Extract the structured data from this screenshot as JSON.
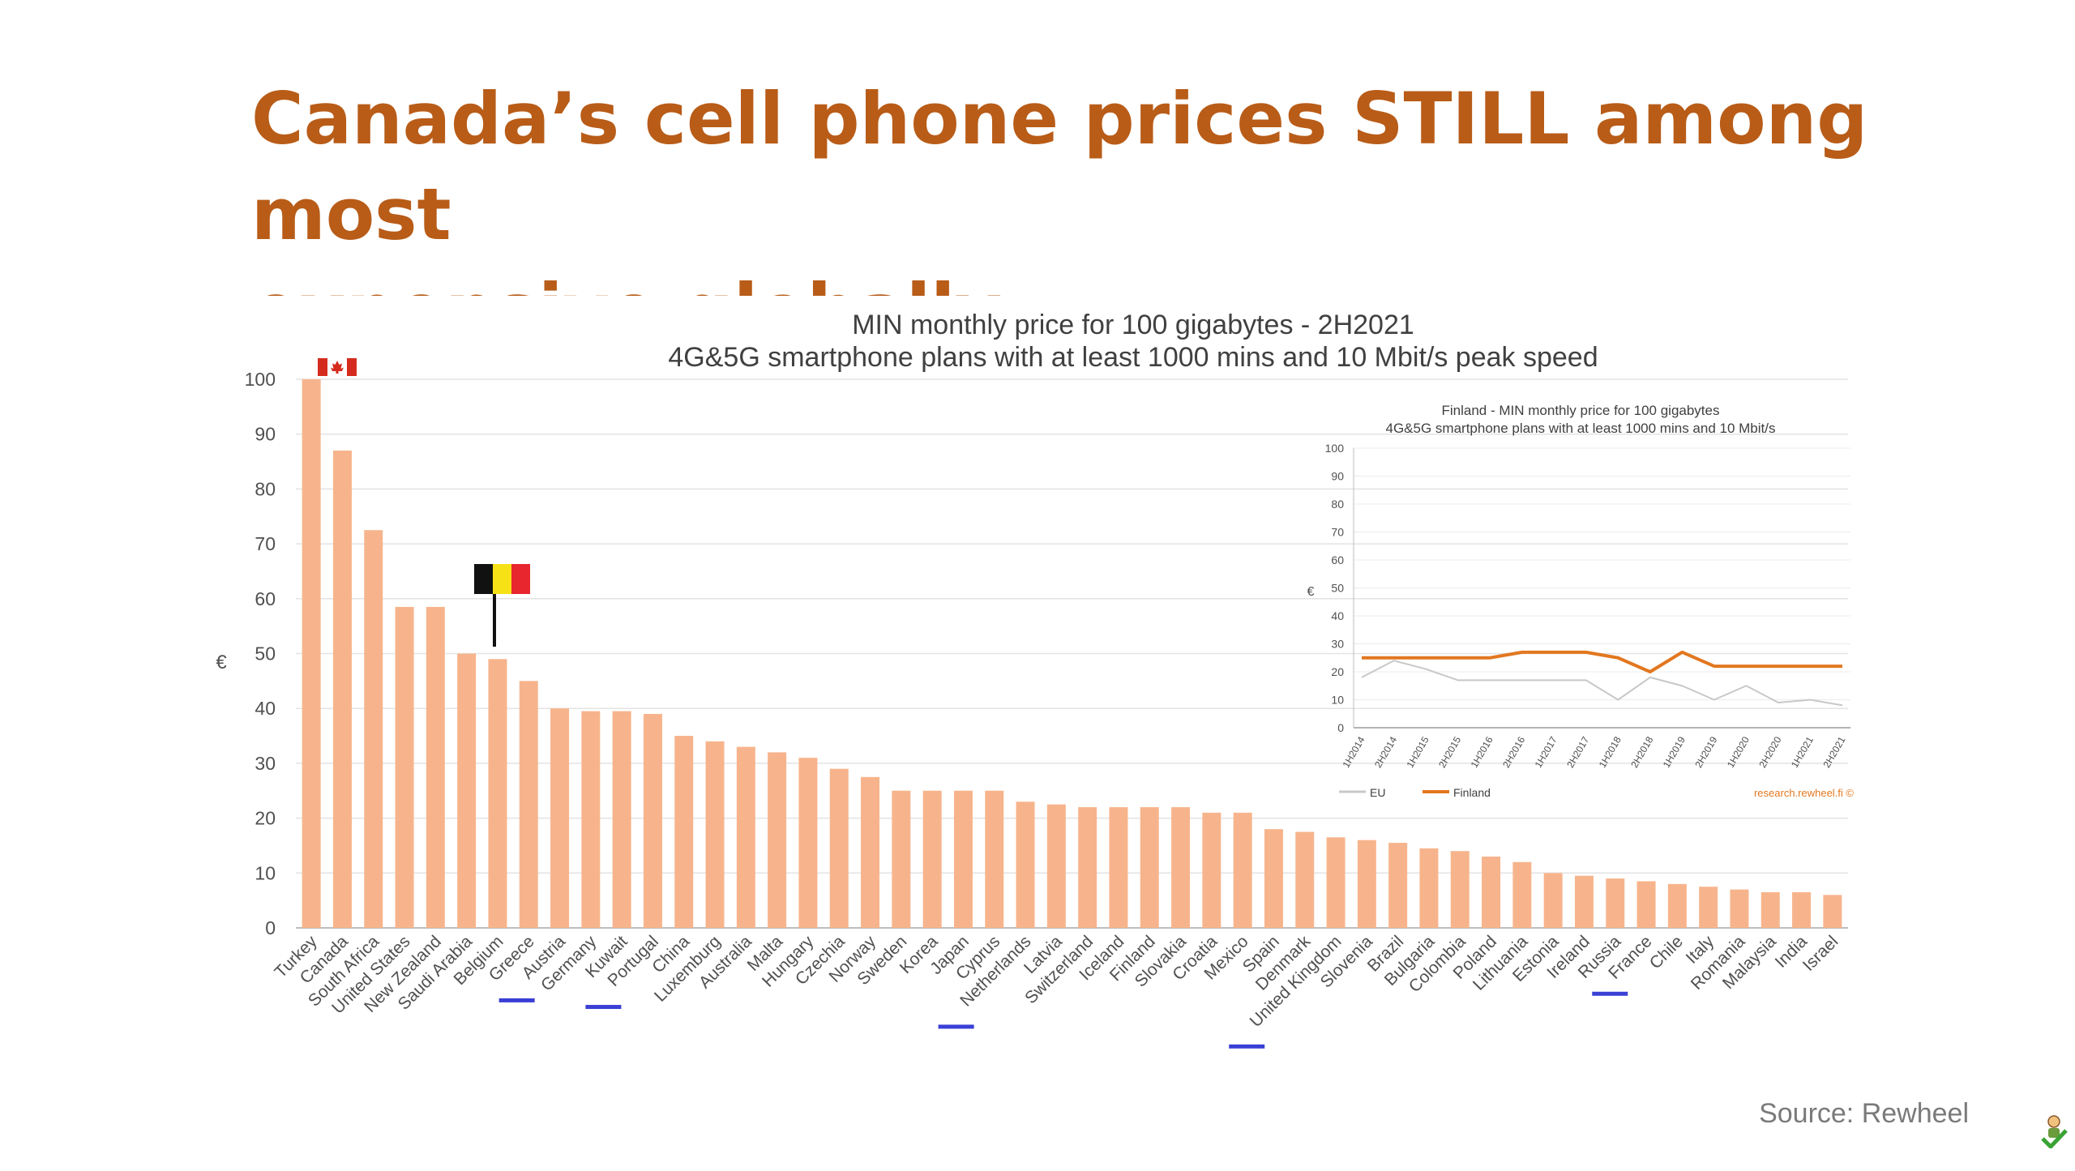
{
  "slide": {
    "title_line1": "Canada’s cell phone prices STILL among most",
    "title_line2": "expensive globally",
    "source": "Source: Rewheel"
  },
  "colors": {
    "title": "#b85c18",
    "bar": "#f7b48c",
    "finland_line": "#e2771f",
    "eu_line": "#c8c8c8",
    "underline": "#3a3fd6"
  },
  "chart_data": [
    {
      "type": "bar",
      "title": "MIN monthly price for 100 gigabytes - 2H2021",
      "subtitle": "4G&5G smartphone plans with at least 1000 mins and 10 Mbit/s peak speed",
      "ylabel": "€",
      "ylim": [
        0,
        100
      ],
      "yticks": [
        0,
        10,
        20,
        30,
        40,
        50,
        60,
        70,
        80,
        90,
        100
      ],
      "grid": true,
      "categories": [
        "Turkey",
        "Canada",
        "South Africa",
        "United States",
        "New Zealand",
        "Saudi Arabia",
        "Belgium",
        "Greece",
        "Austria",
        "Germany",
        "Kuwait",
        "Portugal",
        "China",
        "Luxemburg",
        "Australia",
        "Malta",
        "Hungary",
        "Czechia",
        "Norway",
        "Sweden",
        "Korea",
        "Japan",
        "Cyprus",
        "Netherlands",
        "Latvia",
        "Switzerland",
        "Iceland",
        "Finland",
        "Slovakia",
        "Croatia",
        "Mexico",
        "Spain",
        "Denmark",
        "United Kingdom",
        "Slovenia",
        "Brazil",
        "Bulgaria",
        "Colombia",
        "Poland",
        "Lithuania",
        "Estonia",
        "Ireland",
        "Russia",
        "France",
        "Chile",
        "Italy",
        "Romania",
        "Malaysia",
        "India",
        "Israel"
      ],
      "values": [
        100,
        87,
        72.5,
        58.5,
        58.5,
        50,
        49,
        45,
        40,
        39.5,
        39.5,
        39,
        35,
        34,
        33,
        32,
        31,
        29,
        27.5,
        25,
        25,
        25,
        25,
        23,
        22.5,
        22,
        22,
        22,
        22,
        21,
        21,
        18,
        17.5,
        16.5,
        16,
        15.5,
        14.5,
        14,
        13,
        12,
        10,
        9.5,
        9,
        8.5,
        8,
        7.5,
        7,
        6.5,
        6.5,
        6
      ],
      "annotations": [
        {
          "type": "flag",
          "country": "Canada",
          "flag": "canada-flag"
        },
        {
          "type": "flag",
          "country": "Belgium",
          "flag": "belgium-flag"
        },
        {
          "type": "underline",
          "countries": [
            "Austria",
            "Portugal",
            "Netherlands",
            "United Kingdom",
            "France"
          ]
        }
      ]
    },
    {
      "type": "line",
      "title": "Finland - MIN monthly price for 100 gigabytes",
      "subtitle": "4G&5G smartphone plans with at least 1000 mins and 10 Mbit/s",
      "ylabel": "€",
      "ylim": [
        0,
        100
      ],
      "yticks": [
        0,
        10,
        20,
        30,
        40,
        50,
        60,
        70,
        80,
        90,
        100
      ],
      "legend_position": "bottom-left",
      "credit": "research.rewheel.fi ©",
      "x": [
        "1H2014",
        "2H2014",
        "1H2015",
        "2H2015",
        "1H2016",
        "2H2016",
        "1H2017",
        "2H2017",
        "1H2018",
        "2H2018",
        "1H2019",
        "2H2019",
        "1H2020",
        "2H2020",
        "1H2021",
        "2H2021"
      ],
      "series": [
        {
          "name": "EU",
          "values": [
            18,
            24,
            21,
            17,
            17,
            17,
            17,
            17,
            10,
            18,
            15,
            10,
            15,
            9,
            10,
            8
          ]
        },
        {
          "name": "Finland",
          "values": [
            25,
            25,
            25,
            25,
            25,
            27,
            27,
            27,
            25,
            20,
            27,
            22,
            22,
            22,
            22,
            22
          ]
        }
      ]
    }
  ]
}
